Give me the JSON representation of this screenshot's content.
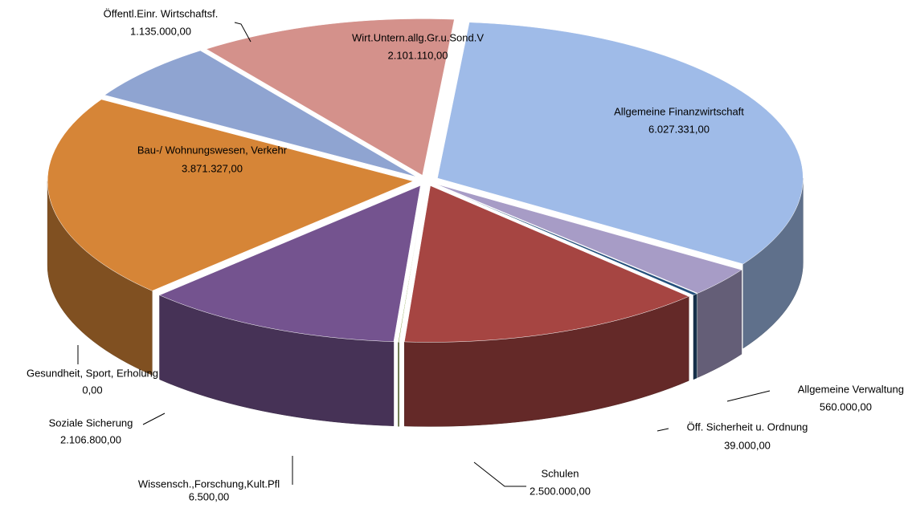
{
  "chart_data": {
    "type": "pie",
    "categories": [
      "Allgemeine Finanzwirtschaft",
      "Allgemeine Verwaltung",
      "Öff. Sicherheit u. Ordnung",
      "Schulen",
      "Wissensch.,Forschung,Kult.Pfl",
      "Soziale Sicherung",
      "Gesundheit, Sport, Erholung",
      "Bau-/ Wohnungswesen, Verkehr",
      "Öffentl.Einr. Wirtschaftsf.",
      "Wirt.Untern.allg.Gr.u.Sond.V"
    ],
    "values": [
      6027331,
      560000,
      39000,
      2500000,
      6500,
      2106800,
      0,
      3871327,
      1135000,
      2101110
    ],
    "value_labels": [
      "6.027.331,00",
      "560.000,00",
      "39.000,00",
      "2.500.000,00",
      "6.500,00",
      "2.106.800,00",
      "0,00",
      "3.871.327,00",
      "1.135.000,00",
      "2.101.110,00"
    ],
    "colors": [
      "#9fbbe8",
      "#a79cc6",
      "#24507c",
      "#a64542",
      "#7f9c3c",
      "#74538f",
      "#2f6f86",
      "#d68537",
      "#8fa4d1",
      "#d4918b"
    ]
  }
}
